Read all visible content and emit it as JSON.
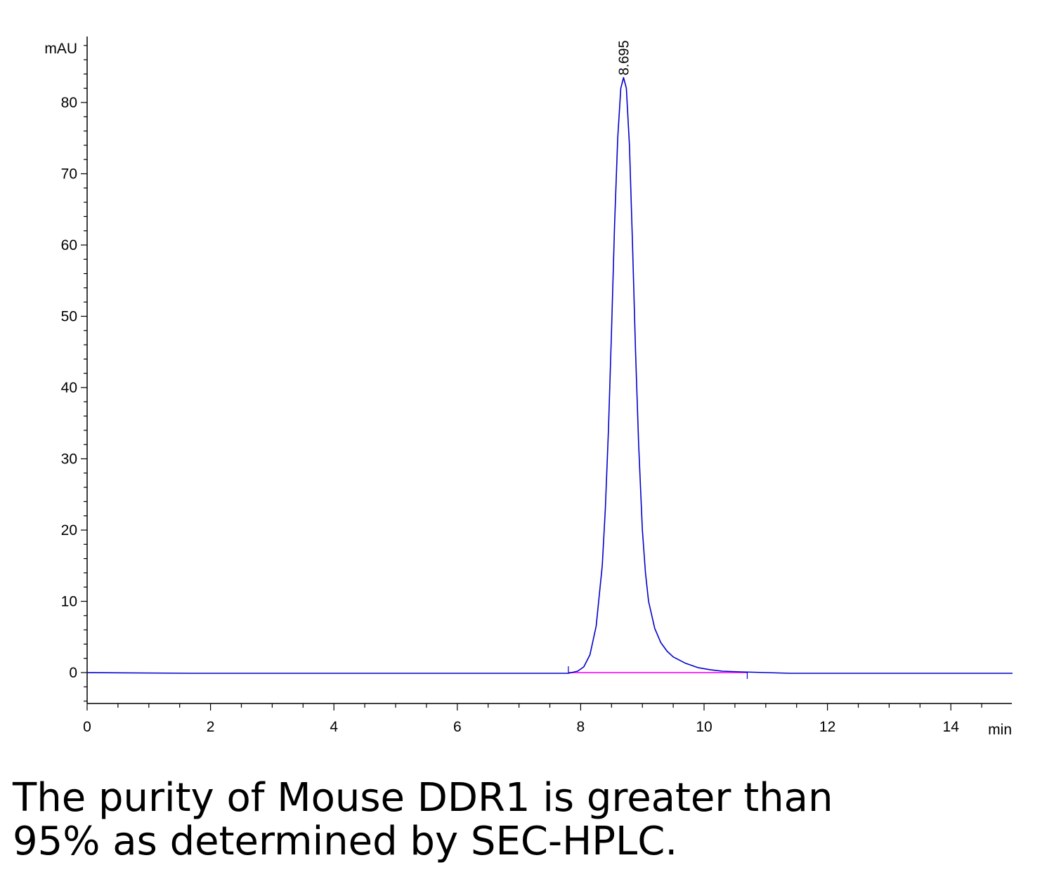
{
  "chart_data": {
    "type": "line",
    "title": "",
    "xlabel": "min",
    "ylabel": "mAU",
    "xlim": [
      0,
      15
    ],
    "ylim": [
      -4.2,
      89.5
    ],
    "xticks": [
      0,
      2,
      4,
      6,
      8,
      10,
      12,
      14
    ],
    "yticks": [
      0,
      10,
      20,
      30,
      40,
      50,
      60,
      70,
      80
    ],
    "grid": false,
    "series": [
      {
        "color": "#0000cc",
        "x": [
          0,
          1.7,
          3,
          5,
          7,
          7.5,
          7.8,
          7.95,
          8.05,
          8.15,
          8.25,
          8.35,
          8.4,
          8.45,
          8.5,
          8.55,
          8.6,
          8.65,
          8.695,
          8.74,
          8.79,
          8.84,
          8.89,
          8.94,
          9.0,
          9.05,
          9.1,
          9.2,
          9.3,
          9.4,
          9.5,
          9.7,
          9.9,
          10.1,
          10.3,
          10.6,
          11.0,
          11.4,
          12,
          13,
          14,
          15
        ],
        "y": [
          0,
          -0.1,
          -0.1,
          -0.1,
          -0.1,
          -0.1,
          -0.1,
          0.2,
          0.8,
          2.5,
          6.5,
          15,
          23,
          34,
          48,
          63,
          75,
          82,
          83.5,
          82,
          74,
          60,
          45,
          32,
          20,
          14,
          10,
          6.2,
          4.2,
          3.0,
          2.2,
          1.3,
          0.7,
          0.4,
          0.2,
          0.1,
          0,
          -0.1,
          -0.1,
          -0.1,
          -0.1,
          -0.1
        ]
      }
    ],
    "baseline": {
      "color": "#ff33ff",
      "x": [
        7.8,
        10.7
      ],
      "y": [
        0,
        0
      ]
    },
    "annotations": [
      {
        "text": "8.695",
        "x": 8.695,
        "y": 84
      }
    ]
  },
  "caption": {
    "line1": "The purity of Mouse DDR1 is greater than",
    "line2": "95% as determined by SEC-HPLC."
  }
}
